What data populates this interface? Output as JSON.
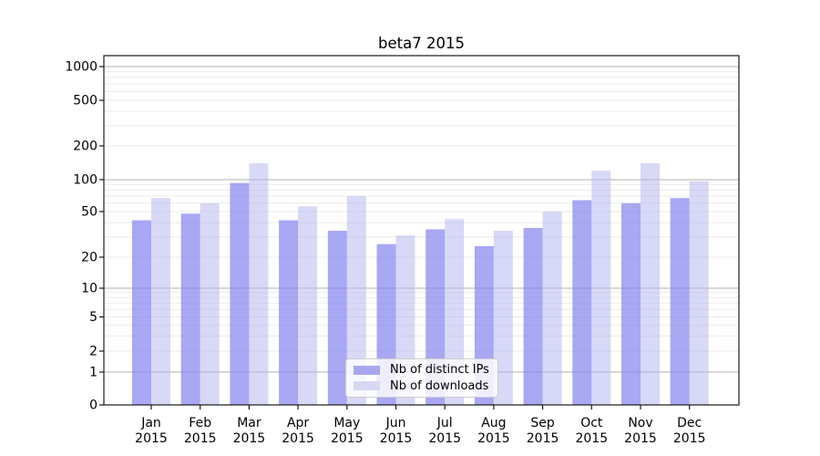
{
  "title": "beta7 2015",
  "chart_data": {
    "type": "bar",
    "title": "beta7 2015",
    "xlabel": "",
    "ylabel": "",
    "yscale": "log (symlog, includes 0)",
    "ylim": [
      0,
      1270
    ],
    "yticks": [
      1000,
      500,
      200,
      100,
      50,
      20,
      10,
      5,
      2,
      1,
      0
    ],
    "grid": true,
    "legend_position": "lower center",
    "categories": [
      "Jan",
      "Feb",
      "Mar",
      "Apr",
      "May",
      "Jun",
      "Jul",
      "Aug",
      "Sep",
      "Oct",
      "Nov",
      "Dec"
    ],
    "category_year": "2015",
    "series": [
      {
        "name": "Nb of distinct IPs",
        "color": "#a8a8f0",
        "bar_rgba": "rgba(132,132,238,0.71)",
        "values": [
          42,
          48,
          93,
          42,
          34,
          26,
          35,
          25,
          36,
          64,
          60,
          67
        ]
      },
      {
        "name": "Nb of downloads",
        "color": "#d8d8f5",
        "bar_rgba": "rgba(180,180,240,0.52)",
        "values": [
          67,
          60,
          140,
          56,
          70,
          31,
          43,
          34,
          50,
          120,
          140,
          97
        ]
      }
    ],
    "colors": {
      "grid_major": "#b0b0b0",
      "grid_minor": "#ebebeb",
      "spine": "#1a1a1a",
      "text": "#000000"
    }
  }
}
